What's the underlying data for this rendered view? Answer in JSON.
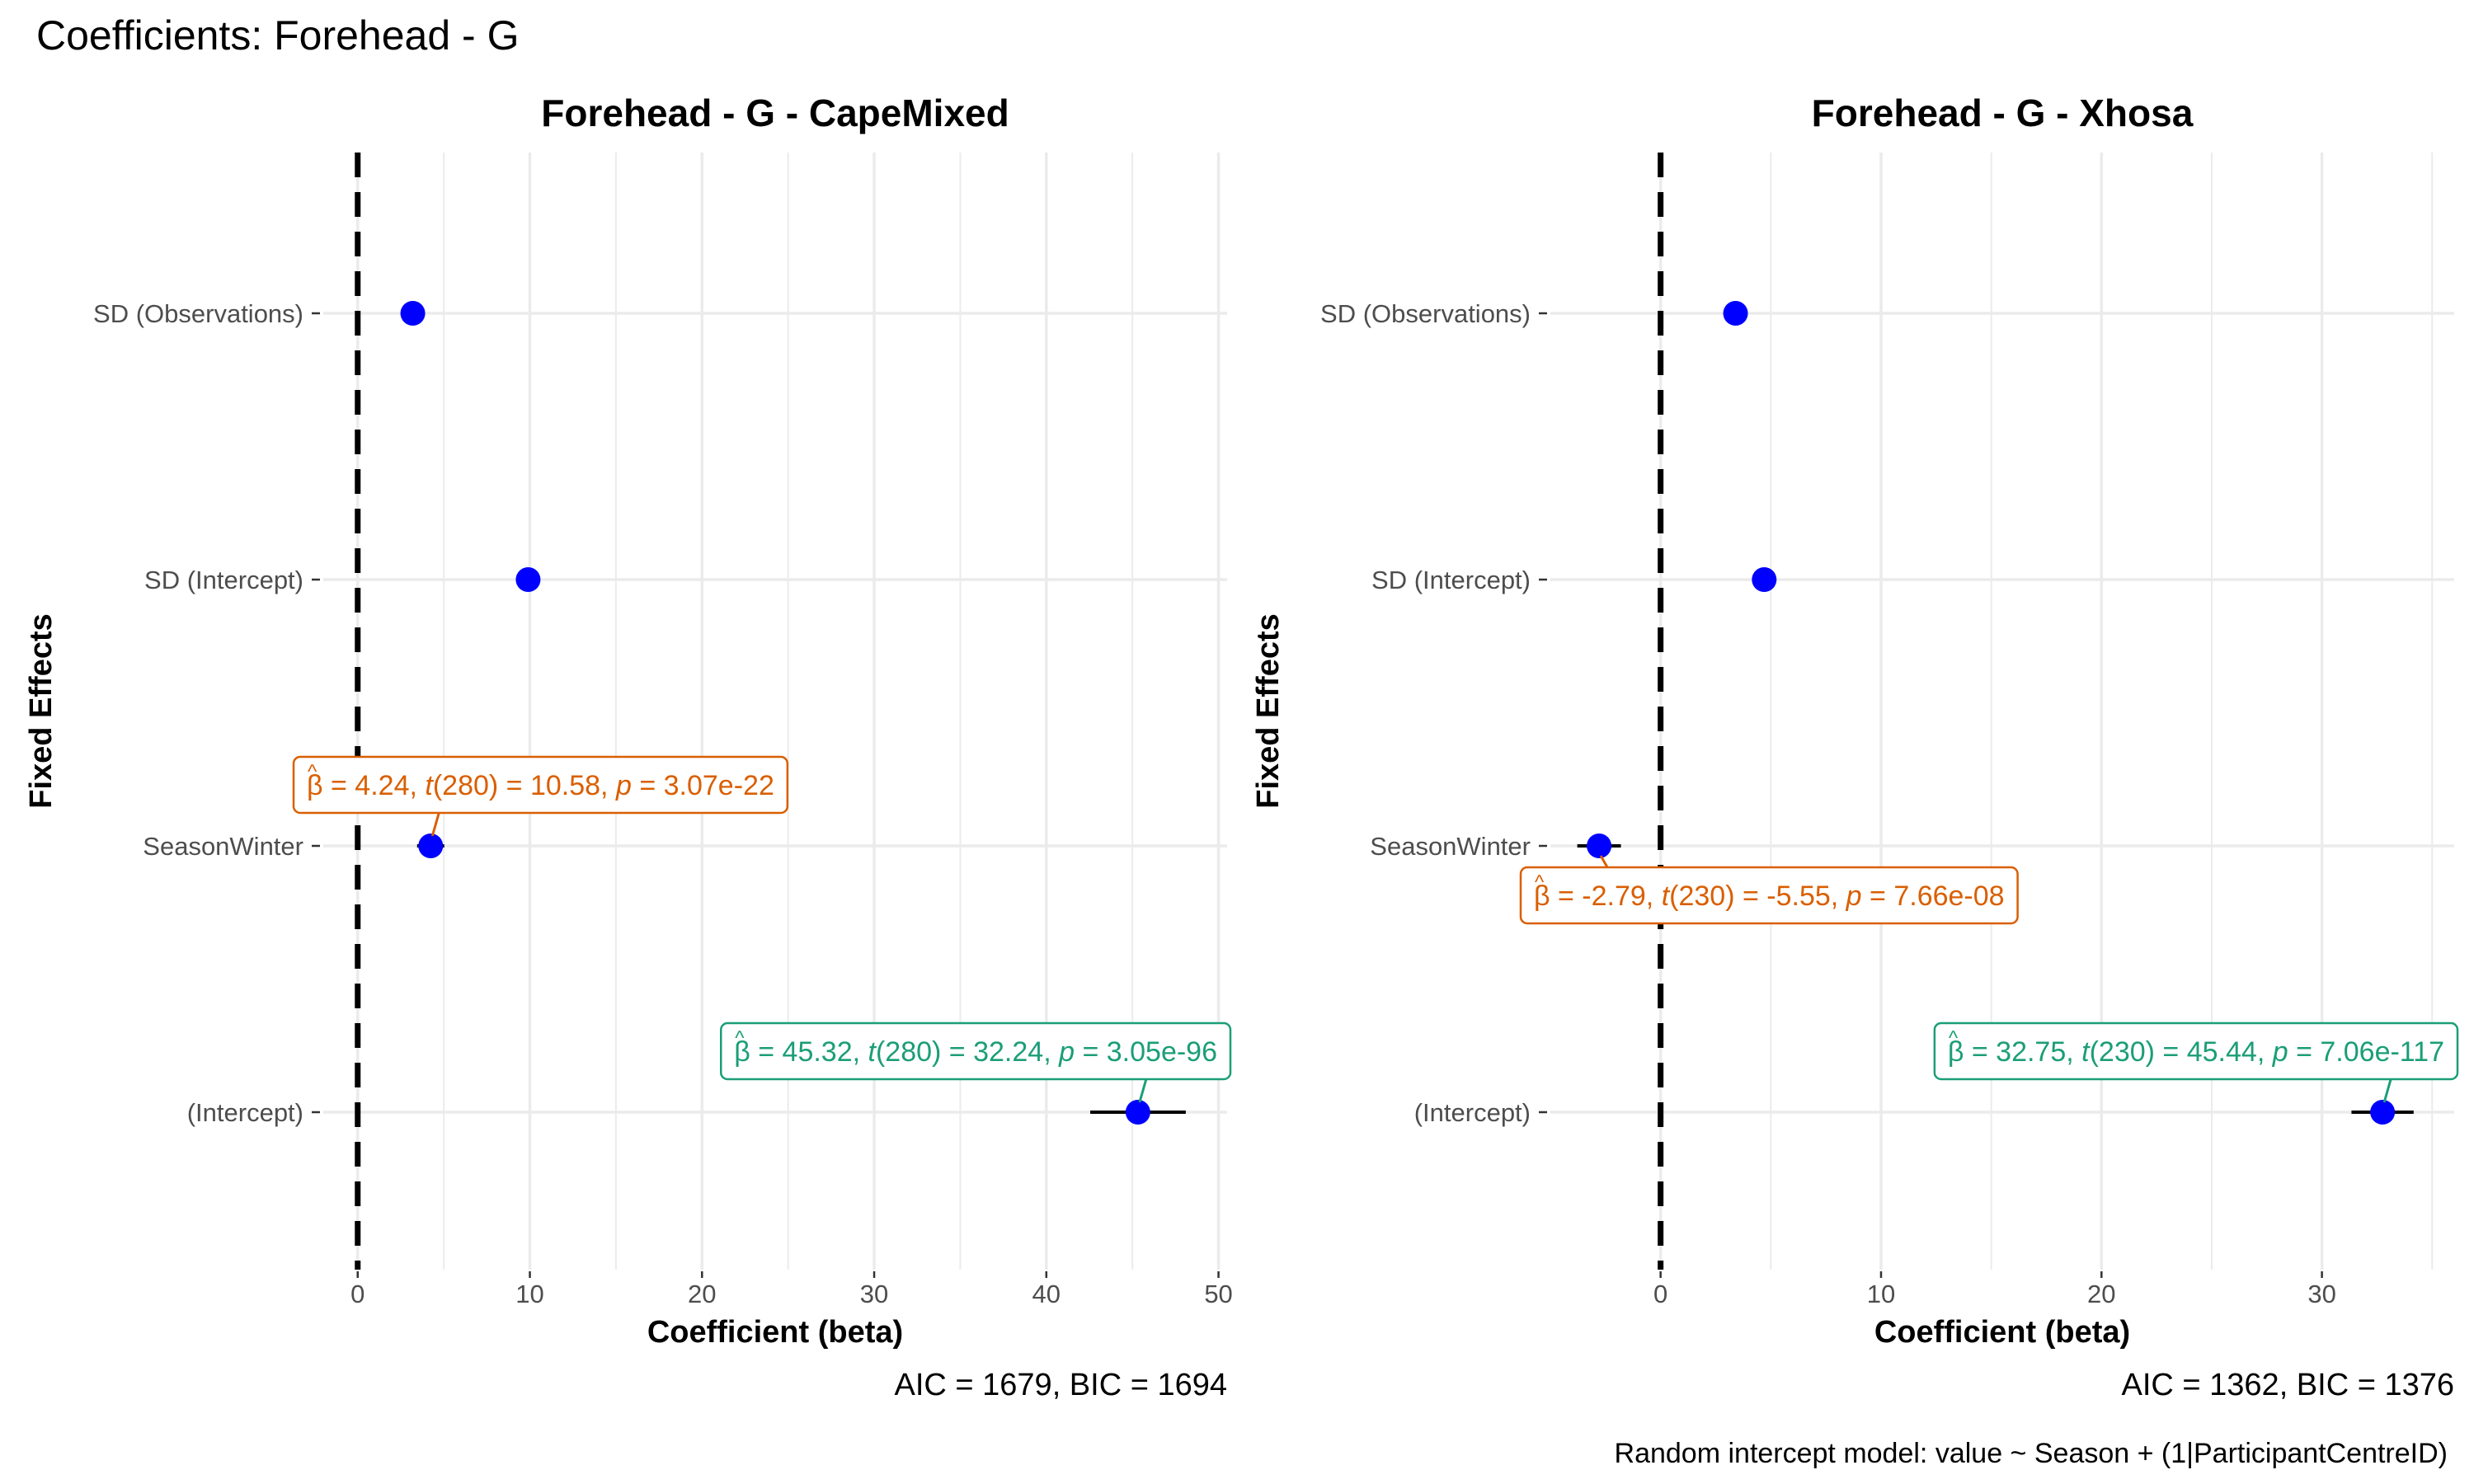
{
  "figure": {
    "title": "Coefficients: Forehead - G",
    "caption": "Random intercept model: value ~ Season + (1|ParticipantCentreID)"
  },
  "colors": {
    "point": "#0000ff",
    "zero_line": "#000000",
    "label_season": "#d95f02",
    "label_intercept": "#1b9e77",
    "grid": "#ebebeb",
    "text": "#000000",
    "tick_text": "#4d4d4d"
  },
  "chart_data": [
    {
      "type": "scatter",
      "title": "Forehead - G - CapeMixed",
      "xlabel": "Coefficient (beta)",
      "ylabel": "Fixed Effects",
      "xlim": [
        -2,
        50.5
      ],
      "xticks": [
        0,
        10,
        20,
        30,
        40,
        50
      ],
      "grid": true,
      "footer": "AIC = 1679, BIC = 1694",
      "categories": [
        "(Intercept)",
        "SeasonWinter",
        "SD (Intercept)",
        "SD (Observations)"
      ],
      "points": [
        {
          "term": "(Intercept)",
          "estimate": 45.32,
          "ci": [
            42.55,
            48.1
          ]
        },
        {
          "term": "SeasonWinter",
          "estimate": 4.24,
          "ci": [
            3.45,
            5.03
          ]
        },
        {
          "term": "SD (Intercept)",
          "estimate": 9.9
        },
        {
          "term": "SD (Observations)",
          "estimate": 3.2
        }
      ],
      "labels": [
        {
          "term": "SeasonWinter",
          "beta": "4.24",
          "df": "280",
          "t": "10.58",
          "p": "3.07e-22",
          "color_key": "label_season",
          "placement": "above"
        },
        {
          "term": "(Intercept)",
          "beta": "45.32",
          "df": "280",
          "t": "32.24",
          "p": "3.05e-96",
          "color_key": "label_intercept",
          "placement": "above"
        }
      ]
    },
    {
      "type": "scatter",
      "title": "Forehead - G - Xhosa",
      "xlabel": "Coefficient (beta)",
      "ylabel": "Fixed Effects",
      "xlim": [
        -5,
        36
      ],
      "xticks": [
        0,
        10,
        20,
        30
      ],
      "grid": true,
      "footer": "AIC = 1362, BIC = 1376",
      "categories": [
        "(Intercept)",
        "SeasonWinter",
        "SD (Intercept)",
        "SD (Observations)"
      ],
      "points": [
        {
          "term": "(Intercept)",
          "estimate": 32.75,
          "ci": [
            31.34,
            34.16
          ]
        },
        {
          "term": "SeasonWinter",
          "estimate": -2.79,
          "ci": [
            -3.78,
            -1.8
          ]
        },
        {
          "term": "SD (Intercept)",
          "estimate": 4.7
        },
        {
          "term": "SD (Observations)",
          "estimate": 3.4
        }
      ],
      "labels": [
        {
          "term": "SeasonWinter",
          "beta": "-2.79",
          "df": "230",
          "t": "-5.55",
          "p": "7.66e-08",
          "color_key": "label_season",
          "placement": "below"
        },
        {
          "term": "(Intercept)",
          "beta": "32.75",
          "df": "230",
          "t": "45.44",
          "p": "7.06e-117",
          "color_key": "label_intercept",
          "placement": "above"
        }
      ]
    }
  ]
}
